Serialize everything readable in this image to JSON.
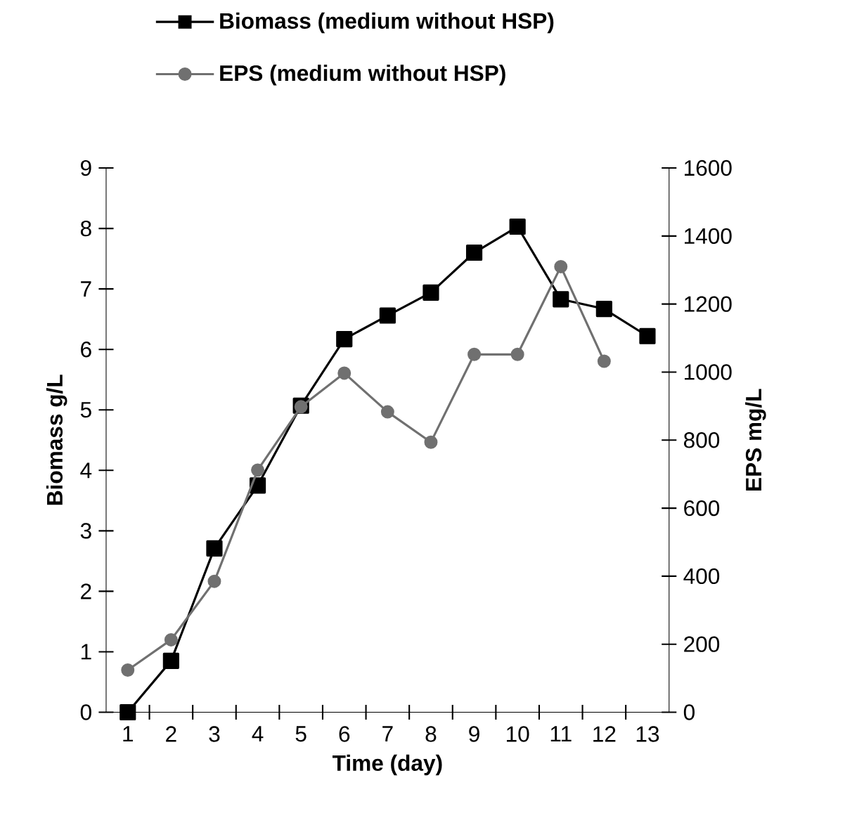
{
  "chart_data": {
    "type": "line",
    "xlabel": "Time (day)",
    "ylabel": "Biomass g/L",
    "y2label": "EPS mg/L",
    "categories": [
      "1",
      "2",
      "3",
      "4",
      "5",
      "6",
      "7",
      "8",
      "9",
      "10",
      "11",
      "12",
      "13"
    ],
    "series": [
      {
        "name": "Biomass (medium without HSP)",
        "color": "#000000",
        "marker": "square",
        "values": [
          0,
          0.85,
          2.71,
          3.75,
          5.07,
          6.17,
          6.56,
          6.94,
          7.6,
          8.03,
          6.83,
          6.67,
          6.22
        ]
      },
      {
        "name": "EPS (medium without HSP)",
        "color": "#707070",
        "marker": "circle",
        "axis": "y2",
        "values": [
          124,
          213,
          385,
          712,
          898,
          997,
          883,
          794,
          1052,
          1052,
          1310,
          1032,
          null
        ]
      }
    ],
    "ylim": [
      0,
      9
    ],
    "yticks": [
      0,
      1,
      2,
      3,
      4,
      5,
      6,
      7,
      8,
      9
    ],
    "y2lim": [
      0,
      1600
    ],
    "y2ticks": [
      0,
      200,
      400,
      600,
      800,
      1000,
      1200,
      1400,
      1600
    ],
    "legend": "top",
    "grid": false,
    "line_style": "solid"
  }
}
